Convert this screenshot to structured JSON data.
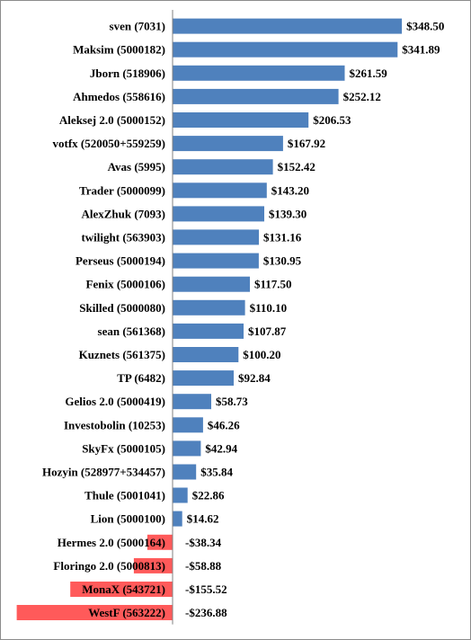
{
  "chart_data": {
    "type": "bar",
    "orientation": "horizontal",
    "title": "",
    "xlabel": "",
    "ylabel": "",
    "grid": false,
    "legend": "none",
    "xlim": [
      -240,
      360
    ],
    "colors": {
      "positive": "#4f81bd",
      "negative": "#ff5a5a",
      "axis": "#808080"
    },
    "categories": [
      "sven (7031)",
      "Maksim (5000182)",
      "Jborn (518906)",
      "Ahmedos (558616)",
      "Aleksej 2.0 (5000152)",
      "votfx (520050+559259)",
      "Avas (5995)",
      "Trader (5000099)",
      "AlexZhuk (7093)",
      "twilight (563903)",
      "Perseus (5000194)",
      "Fenix (5000106)",
      "Skilled (5000080)",
      "sean (561368)",
      "Kuznets (561375)",
      "TP (6482)",
      "Gelios 2.0 (5000419)",
      "Investobolin (10253)",
      "SkyFx (5000105)",
      "Hozyin (528977+534457)",
      "Thule (5001041)",
      "Lion (5000100)",
      "Hermes 2.0 (5000164)",
      "Floringo 2.0 (5000813)",
      "MonaX (543721)",
      "WestF (563222)"
    ],
    "values": [
      348.5,
      341.89,
      261.59,
      252.12,
      206.53,
      167.92,
      152.42,
      143.2,
      139.3,
      131.16,
      130.95,
      117.5,
      110.1,
      107.87,
      100.2,
      92.84,
      58.73,
      46.26,
      42.94,
      35.84,
      22.86,
      14.62,
      -38.34,
      -58.88,
      -155.52,
      -236.88
    ],
    "value_labels": [
      "$348.50",
      "$341.89",
      "$261.59",
      "$252.12",
      "$206.53",
      "$167.92",
      "$152.42",
      "$143.20",
      "$139.30",
      "$131.16",
      "$130.95",
      "$117.50",
      "$110.10",
      "$107.87",
      "$100.20",
      "$92.84",
      "$58.73",
      "$46.26",
      "$42.94",
      "$35.84",
      "$22.86",
      "$14.62",
      "-$38.34",
      "-$58.88",
      "-$155.52",
      "-$236.88"
    ]
  }
}
